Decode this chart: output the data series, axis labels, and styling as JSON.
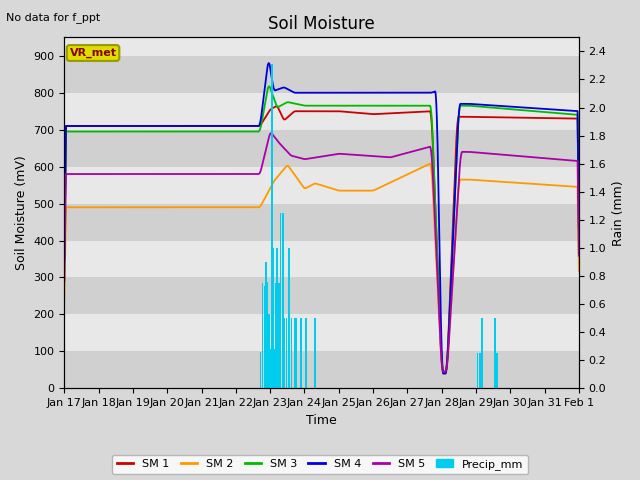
{
  "title": "Soil Moisture",
  "note": "No data for f_ppt",
  "ylabel_left": "Soil Moisture (mV)",
  "ylabel_right": "Rain (mm)",
  "xlabel": "Time",
  "ylim_left": [
    0,
    950
  ],
  "ylim_right": [
    0,
    2.5
  ],
  "fig_bg": "#d8d8d8",
  "plot_bg": "#e8e8e8",
  "band_dark": "#d0d0d0",
  "band_light": "#e8e8e8",
  "legend_colors": [
    "#cc0000",
    "#ff9900",
    "#00bb00",
    "#0000dd",
    "#aa00aa",
    "#00ccee"
  ],
  "legend_labels": [
    "SM 1",
    "SM 2",
    "SM 3",
    "SM 4",
    "SM 5",
    "Precip_mm"
  ],
  "vr_met_bg": "#dddd00",
  "vr_met_fg": "#880000",
  "x_tick_labels": [
    "Jan 17",
    "Jan 18",
    "Jan 19",
    "Jan 20",
    "Jan 21",
    "Jan 22",
    "Jan 23",
    "Jan 24",
    "Jan 25",
    "Jan 26",
    "Jan 27",
    "Jan 28",
    "Jan 29",
    "Jan 30",
    "Jan 31",
    "Feb 1"
  ],
  "right_yticks": [
    0.0,
    0.2,
    0.4,
    0.6,
    0.8,
    1.0,
    1.2,
    1.4,
    1.6,
    1.8,
    2.0,
    2.2,
    2.4
  ],
  "left_yticks": [
    0,
    100,
    200,
    300,
    400,
    500,
    600,
    700,
    800,
    900
  ]
}
